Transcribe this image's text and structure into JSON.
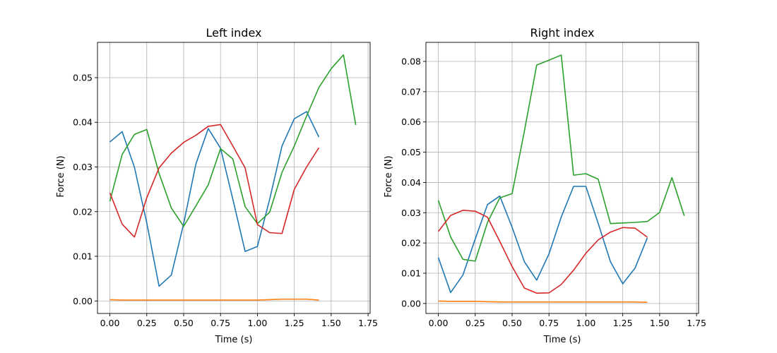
{
  "chart_data": [
    {
      "type": "line",
      "title": "Left index",
      "xlabel": "Time (s)",
      "ylabel": "Force (N)",
      "xlim": [
        -0.084,
        1.764
      ],
      "ylim": [
        -0.0028,
        0.0579
      ],
      "xticks": [
        "0.00",
        "0.25",
        "0.50",
        "0.75",
        "1.00",
        "1.25",
        "1.50",
        "1.75"
      ],
      "xtick_values": [
        0,
        0.25,
        0.5,
        0.75,
        1.0,
        1.25,
        1.5,
        1.75
      ],
      "yticks": [
        "0.00",
        "0.01",
        "0.02",
        "0.03",
        "0.04",
        "0.05"
      ],
      "ytick_values": [
        0,
        0.01,
        0.02,
        0.03,
        0.04,
        0.05
      ],
      "grid": true,
      "series": [
        {
          "color": "#1f77b4",
          "x": [
            0,
            0.0833,
            0.1667,
            0.25,
            0.3333,
            0.4167,
            0.5,
            0.5833,
            0.6667,
            0.75,
            0.8333,
            0.9167,
            1.0,
            1.0833,
            1.1667,
            1.25,
            1.3333,
            1.4167
          ],
          "y": [
            0.0356,
            0.0379,
            0.0299,
            0.0175,
            0.0033,
            0.0058,
            0.0173,
            0.0307,
            0.0386,
            0.0342,
            0.0228,
            0.0111,
            0.0122,
            0.0228,
            0.0347,
            0.0408,
            0.0424,
            0.0367
          ]
        },
        {
          "color": "#ff7f0e",
          "x": [
            0,
            0.0833,
            0.1667,
            0.25,
            0.3333,
            0.4167,
            0.5,
            0.5833,
            0.6667,
            0.75,
            0.8333,
            0.9167,
            1.0,
            1.0833,
            1.1667,
            1.25,
            1.3333,
            1.4167
          ],
          "y": [
            0.0003,
            0.0002,
            0.0002,
            0.0002,
            0.0002,
            0.0002,
            0.0002,
            0.0002,
            0.0002,
            0.0002,
            0.0002,
            0.0002,
            0.0002,
            0.0003,
            0.0004,
            0.0004,
            0.0004,
            0.0002
          ]
        },
        {
          "color": "#2ca02c",
          "x": [
            0,
            0.0833,
            0.1667,
            0.25,
            0.3333,
            0.4167,
            0.5,
            0.5833,
            0.6667,
            0.75,
            0.8333,
            0.9167,
            1.0,
            1.0833,
            1.1667,
            1.25,
            1.3333,
            1.4167,
            1.5,
            1.5833,
            1.6667
          ],
          "y": [
            0.0223,
            0.0328,
            0.0373,
            0.0384,
            0.0286,
            0.0208,
            0.0167,
            0.0213,
            0.026,
            0.0341,
            0.0318,
            0.0211,
            0.0173,
            0.0199,
            0.0288,
            0.0347,
            0.0414,
            0.0478,
            0.052,
            0.0551,
            0.0394
          ]
        },
        {
          "color": "#d62728",
          "x": [
            0,
            0.0833,
            0.1667,
            0.25,
            0.3333,
            0.4167,
            0.5,
            0.5833,
            0.6667,
            0.75,
            0.8333,
            0.9167,
            1.0,
            1.0833,
            1.1667,
            1.25,
            1.3333,
            1.4167
          ],
          "y": [
            0.0242,
            0.0172,
            0.0143,
            0.0231,
            0.0298,
            0.0331,
            0.0355,
            0.0371,
            0.0391,
            0.0395,
            0.0347,
            0.0298,
            0.0171,
            0.0153,
            0.0151,
            0.025,
            0.03,
            0.0343
          ]
        }
      ]
    },
    {
      "type": "line",
      "title": "Right index",
      "xlabel": "Time (s)",
      "ylabel": "Force (N)",
      "xlim": [
        -0.084,
        1.764
      ],
      "ylim": [
        -0.0033,
        0.0863
      ],
      "xticks": [
        "0.00",
        "0.25",
        "0.50",
        "0.75",
        "1.00",
        "1.25",
        "1.50",
        "1.75"
      ],
      "xtick_values": [
        0,
        0.25,
        0.5,
        0.75,
        1.0,
        1.25,
        1.5,
        1.75
      ],
      "yticks": [
        "0.00",
        "0.01",
        "0.02",
        "0.03",
        "0.04",
        "0.05",
        "0.06",
        "0.07",
        "0.08"
      ],
      "ytick_values": [
        0,
        0.01,
        0.02,
        0.03,
        0.04,
        0.05,
        0.06,
        0.07,
        0.08
      ],
      "grid": true,
      "series": [
        {
          "color": "#1f77b4",
          "x": [
            0,
            0.0833,
            0.1667,
            0.25,
            0.3333,
            0.4167,
            0.5,
            0.5833,
            0.6667,
            0.75,
            0.8333,
            0.9167,
            1.0,
            1.0833,
            1.1667,
            1.25,
            1.3333,
            1.4167
          ],
          "y": [
            0.0152,
            0.0036,
            0.0094,
            0.0213,
            0.0327,
            0.0355,
            0.0252,
            0.0138,
            0.0077,
            0.0164,
            0.0286,
            0.0387,
            0.0387,
            0.0265,
            0.0138,
            0.0065,
            0.0117,
            0.0217
          ]
        },
        {
          "color": "#ff7f0e",
          "x": [
            0,
            0.0833,
            0.1667,
            0.25,
            0.3333,
            0.4167,
            0.5,
            0.5833,
            0.6667,
            0.75,
            0.8333,
            0.9167,
            1.0,
            1.0833,
            1.1667,
            1.25,
            1.3333,
            1.4167
          ],
          "y": [
            0.0008,
            0.0007,
            0.0007,
            0.0007,
            0.0006,
            0.0005,
            0.0005,
            0.0005,
            0.0005,
            0.0005,
            0.0005,
            0.0005,
            0.0005,
            0.0005,
            0.0005,
            0.0005,
            0.0005,
            0.0004
          ]
        },
        {
          "color": "#2ca02c",
          "x": [
            0,
            0.0833,
            0.1667,
            0.25,
            0.3333,
            0.4167,
            0.5,
            0.5833,
            0.6667,
            0.75,
            0.8333,
            0.9167,
            1.0,
            1.0833,
            1.1667,
            1.25,
            1.3333,
            1.4167,
            1.5,
            1.5833,
            1.6667
          ],
          "y": [
            0.0341,
            0.022,
            0.0146,
            0.014,
            0.0268,
            0.0349,
            0.0363,
            0.057,
            0.0788,
            0.0804,
            0.0821,
            0.0424,
            0.0429,
            0.0411,
            0.0264,
            0.0266,
            0.0268,
            0.0271,
            0.0301,
            0.0416,
            0.029
          ]
        },
        {
          "color": "#d62728",
          "x": [
            0,
            0.0833,
            0.1667,
            0.25,
            0.3333,
            0.4167,
            0.5,
            0.5833,
            0.6667,
            0.75,
            0.8333,
            0.9167,
            1.0,
            1.0833,
            1.1667,
            1.25,
            1.3333,
            1.4167
          ],
          "y": [
            0.0238,
            0.0291,
            0.0308,
            0.0305,
            0.0285,
            0.0205,
            0.0122,
            0.0051,
            0.0034,
            0.0035,
            0.0063,
            0.011,
            0.0166,
            0.021,
            0.0236,
            0.0251,
            0.0249,
            0.0219
          ]
        }
      ]
    }
  ]
}
